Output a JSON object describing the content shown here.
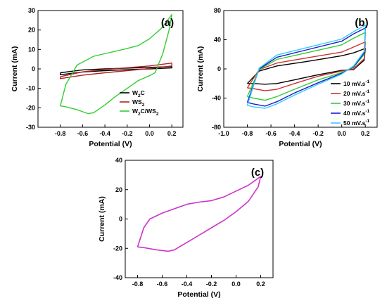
{
  "chart_data": [
    {
      "type": "line",
      "panel_label": "(a)",
      "xlabel": "Potential (V)",
      "ylabel": "Current (mA)",
      "xlim": [
        -1.0,
        0.3
      ],
      "ylim": [
        -30,
        30
      ],
      "xticks": [
        -0.8,
        -0.6,
        -0.4,
        -0.2,
        0.0,
        0.2
      ],
      "xtick_labels": [
        "-0.8",
        "-0.6",
        "-0.4",
        "-0.2",
        "0.0",
        "0.2"
      ],
      "yticks": [
        -30,
        -20,
        -10,
        0,
        10,
        20,
        30
      ],
      "ytick_labels": [
        "-30",
        "-20",
        "-10",
        "0",
        "10",
        "20",
        "30"
      ],
      "legend_position": "bottom-right",
      "series": [
        {
          "name": "W2C",
          "legend_main": "W",
          "legend_sub": "2",
          "legend_tail": "C",
          "color": "#000000",
          "points": [
            [
              -0.8,
              -2
            ],
            [
              -0.6,
              -0.5
            ],
            [
              -0.4,
              0
            ],
            [
              -0.2,
              0.4
            ],
            [
              0.0,
              0.8
            ],
            [
              0.2,
              1.2
            ],
            [
              0.2,
              0.5
            ],
            [
              0.0,
              0
            ],
            [
              -0.2,
              -0.4
            ],
            [
              -0.4,
              -0.9
            ],
            [
              -0.6,
              -1.6
            ],
            [
              -0.8,
              -3
            ],
            [
              -0.8,
              -2
            ]
          ]
        },
        {
          "name": "WS2",
          "legend_main": "WS",
          "legend_sub": "2",
          "legend_tail": "",
          "color": "#b22222",
          "points": [
            [
              -0.8,
              -4
            ],
            [
              -0.6,
              -1.5
            ],
            [
              -0.4,
              -0.3
            ],
            [
              -0.2,
              0.6
            ],
            [
              0.0,
              1.5
            ],
            [
              0.2,
              3
            ],
            [
              0.2,
              1.5
            ],
            [
              0.0,
              0.2
            ],
            [
              -0.2,
              -0.9
            ],
            [
              -0.4,
              -2
            ],
            [
              -0.6,
              -3.2
            ],
            [
              -0.8,
              -5
            ],
            [
              -0.8,
              -4
            ]
          ]
        },
        {
          "name": "W2C/WS2",
          "legend_main": "W",
          "legend_sub": "2",
          "legend_tail": "C/WS",
          "legend_sub2": "2",
          "color": "#33cc33",
          "points": [
            [
              -0.8,
              -19
            ],
            [
              -0.75,
              -8
            ],
            [
              -0.65,
              2
            ],
            [
              -0.5,
              6.5
            ],
            [
              -0.35,
              8.5
            ],
            [
              -0.2,
              10.5
            ],
            [
              -0.1,
              12
            ],
            [
              0.0,
              15.5
            ],
            [
              0.1,
              20.5
            ],
            [
              0.15,
              24
            ],
            [
              0.2,
              28
            ],
            [
              0.18,
              21
            ],
            [
              0.12,
              8
            ],
            [
              0.05,
              -2
            ],
            [
              0.0,
              -3.5
            ],
            [
              -0.1,
              -6
            ],
            [
              -0.2,
              -10
            ],
            [
              -0.3,
              -14
            ],
            [
              -0.4,
              -18.5
            ],
            [
              -0.5,
              -22.5
            ],
            [
              -0.55,
              -23
            ],
            [
              -0.65,
              -21
            ],
            [
              -0.75,
              -19.5
            ],
            [
              -0.8,
              -19
            ]
          ]
        }
      ]
    },
    {
      "type": "line",
      "panel_label": "(b)",
      "xlabel": "Potential (V)",
      "ylabel": "Current (mA)",
      "xlim": [
        -1.0,
        0.3
      ],
      "ylim": [
        -80,
        80
      ],
      "xticks": [
        -1.0,
        -0.8,
        -0.6,
        -0.4,
        -0.2,
        0.0,
        0.2
      ],
      "xtick_labels": [
        "-1.0",
        "-0.8",
        "-0.6",
        "-0.4",
        "-0.2",
        "0.0",
        "0.2"
      ],
      "yticks": [
        -80,
        -40,
        0,
        40,
        80
      ],
      "ytick_labels": [
        "-80",
        "-40",
        "0",
        "40",
        "80"
      ],
      "legend_position": "bottom-right",
      "series": [
        {
          "name": "10 mV.s-1",
          "legend_main": "10 mV.s",
          "legend_sup": "-1",
          "color": "#000000",
          "points": [
            [
              -0.8,
              -20
            ],
            [
              -0.7,
              -3
            ],
            [
              -0.55,
              4
            ],
            [
              -0.3,
              10
            ],
            [
              0.0,
              18
            ],
            [
              0.1,
              22
            ],
            [
              0.2,
              28
            ],
            [
              0.19,
              12
            ],
            [
              0.1,
              -1
            ],
            [
              0.0,
              -2
            ],
            [
              -0.2,
              -8
            ],
            [
              -0.4,
              -15
            ],
            [
              -0.55,
              -20
            ],
            [
              -0.65,
              -21
            ],
            [
              -0.75,
              -20
            ],
            [
              -0.8,
              -20
            ]
          ]
        },
        {
          "name": "20 mV.s-1",
          "legend_main": "20 mV.s",
          "legend_sup": "-1",
          "color": "#cc3333",
          "points": [
            [
              -0.8,
              -26
            ],
            [
              -0.7,
              -1
            ],
            [
              -0.55,
              8
            ],
            [
              -0.3,
              15
            ],
            [
              0.0,
              23
            ],
            [
              0.1,
              30
            ],
            [
              0.2,
              37
            ],
            [
              0.19,
              14
            ],
            [
              0.1,
              0
            ],
            [
              0.0,
              -3
            ],
            [
              -0.2,
              -10
            ],
            [
              -0.4,
              -20
            ],
            [
              -0.55,
              -28
            ],
            [
              -0.65,
              -30
            ],
            [
              -0.75,
              -27
            ],
            [
              -0.8,
              -26
            ]
          ]
        },
        {
          "name": "30 mV.s-1",
          "legend_main": "30 mV.s",
          "legend_sup": "-1",
          "color": "#33cc33",
          "points": [
            [
              -0.8,
              -38
            ],
            [
              -0.7,
              -1
            ],
            [
              -0.55,
              13
            ],
            [
              -0.3,
              22
            ],
            [
              0.0,
              33
            ],
            [
              0.1,
              42
            ],
            [
              0.2,
              50
            ],
            [
              0.19,
              20
            ],
            [
              0.1,
              2
            ],
            [
              0.0,
              -5
            ],
            [
              -0.2,
              -15
            ],
            [
              -0.4,
              -28
            ],
            [
              -0.55,
              -38
            ],
            [
              -0.65,
              -43
            ],
            [
              -0.75,
              -40
            ],
            [
              -0.8,
              -38
            ]
          ]
        },
        {
          "name": "40 mV.s-1",
          "legend_main": "40 mV.s",
          "legend_sup": "-1",
          "color": "#1a1acc",
          "points": [
            [
              -0.8,
              -46
            ],
            [
              -0.7,
              0
            ],
            [
              -0.55,
              16
            ],
            [
              -0.3,
              26
            ],
            [
              0.0,
              38
            ],
            [
              0.1,
              48
            ],
            [
              0.2,
              56
            ],
            [
              0.19,
              22
            ],
            [
              0.1,
              3
            ],
            [
              0.0,
              -6
            ],
            [
              -0.2,
              -19
            ],
            [
              -0.4,
              -33
            ],
            [
              -0.55,
              -45
            ],
            [
              -0.65,
              -51
            ],
            [
              -0.75,
              -48
            ],
            [
              -0.8,
              -46
            ]
          ]
        },
        {
          "name": "50 mV.s-1",
          "legend_main": "50 mV.s",
          "legend_sup": "-1",
          "color": "#33ccff",
          "points": [
            [
              -0.8,
              -50
            ],
            [
              -0.7,
              1
            ],
            [
              -0.55,
              19
            ],
            [
              -0.3,
              29
            ],
            [
              0.0,
              41
            ],
            [
              0.1,
              51
            ],
            [
              0.2,
              60
            ],
            [
              0.19,
              24
            ],
            [
              0.1,
              4
            ],
            [
              0.0,
              -7
            ],
            [
              -0.2,
              -21
            ],
            [
              -0.4,
              -36
            ],
            [
              -0.55,
              -48
            ],
            [
              -0.65,
              -54
            ],
            [
              -0.75,
              -52
            ],
            [
              -0.8,
              -50
            ]
          ]
        }
      ]
    },
    {
      "type": "line",
      "panel_label": "(c)",
      "xlabel": "Potential (V)",
      "ylabel": "Current (mA)",
      "xlim": [
        -0.9,
        0.3
      ],
      "ylim": [
        -40,
        40
      ],
      "xticks": [
        -0.8,
        -0.6,
        -0.4,
        -0.2,
        0.0,
        0.2
      ],
      "xtick_labels": [
        "-0.8",
        "-0.6",
        "-0.4",
        "-0.2",
        "0.0",
        "0.2"
      ],
      "yticks": [
        -40,
        -20,
        0,
        20,
        40
      ],
      "ytick_labels": [
        "-40",
        "-20",
        "0",
        "20",
        "40"
      ],
      "series": [
        {
          "name": "",
          "color": "#cc33cc",
          "points": [
            [
              -0.8,
              -19
            ],
            [
              -0.75,
              -6
            ],
            [
              -0.7,
              0
            ],
            [
              -0.6,
              4
            ],
            [
              -0.5,
              7
            ],
            [
              -0.4,
              10
            ],
            [
              -0.3,
              11.5
            ],
            [
              -0.2,
              12.5
            ],
            [
              -0.1,
              15
            ],
            [
              0.0,
              19
            ],
            [
              0.1,
              23
            ],
            [
              0.2,
              29
            ],
            [
              0.18,
              22
            ],
            [
              0.1,
              12
            ],
            [
              0.0,
              5
            ],
            [
              -0.1,
              -1
            ],
            [
              -0.2,
              -6
            ],
            [
              -0.3,
              -11
            ],
            [
              -0.4,
              -16
            ],
            [
              -0.5,
              -21
            ],
            [
              -0.55,
              -22
            ],
            [
              -0.65,
              -21
            ],
            [
              -0.75,
              -19.5
            ],
            [
              -0.8,
              -19
            ]
          ]
        }
      ]
    }
  ]
}
